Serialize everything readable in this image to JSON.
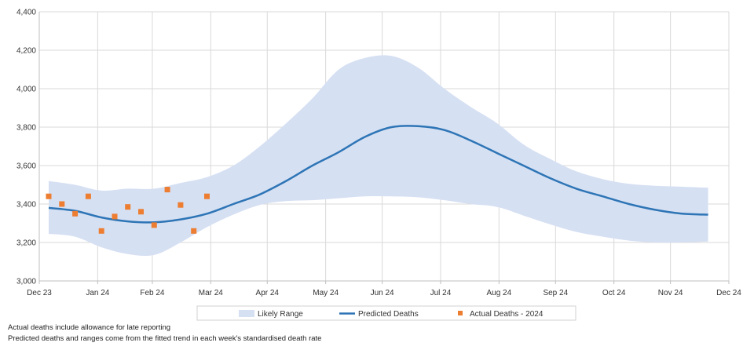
{
  "notes": [
    "Actual deaths include allowance for late reporting",
    "Predicted deaths and ranges come from the fitted trend in each week's standardised death rate"
  ],
  "colors": {
    "range": "#d6e0f3",
    "predicted": "#2e75b6",
    "actual": "#ed7d31",
    "grid": "#d9d9d9",
    "axis": "#bfbfbf"
  },
  "chart_data": {
    "type": "line",
    "title": "",
    "xlabel": "",
    "ylabel": "",
    "ylim": [
      3000,
      4400
    ],
    "yticks": [
      3000,
      3200,
      3400,
      3600,
      3800,
      4000,
      4200,
      4400
    ],
    "ytick_labels": [
      "3,000",
      "3,200",
      "3,400",
      "3,600",
      "3,800",
      "4,000",
      "4,200",
      "4,400"
    ],
    "xlim": [
      "2023-12-31",
      "2024-12-31"
    ],
    "xticks": [
      {
        "date": "2023-12-31",
        "label": "Dec 23"
      },
      {
        "date": "2024-01-31",
        "label": "Jan 24"
      },
      {
        "date": "2024-02-29",
        "label": "Feb 24"
      },
      {
        "date": "2024-03-31",
        "label": "Mar 24"
      },
      {
        "date": "2024-04-30",
        "label": "Apr 24"
      },
      {
        "date": "2024-05-31",
        "label": "May 24"
      },
      {
        "date": "2024-06-30",
        "label": "Jun 24"
      },
      {
        "date": "2024-07-31",
        "label": "Jul 24"
      },
      {
        "date": "2024-08-31",
        "label": "Aug 24"
      },
      {
        "date": "2024-09-30",
        "label": "Sep 24"
      },
      {
        "date": "2024-10-31",
        "label": "Oct 24"
      },
      {
        "date": "2024-11-30",
        "label": "Nov 24"
      },
      {
        "date": "2024-12-31",
        "label": "Dec 24"
      }
    ],
    "grid": true,
    "legend": {
      "position": "bottom",
      "entries": [
        {
          "key": "range",
          "label": "Likely Range"
        },
        {
          "key": "predicted",
          "label": "Predicted Deaths"
        },
        {
          "key": "actual",
          "label": "Actual Deaths - 2024"
        }
      ]
    },
    "series": [
      {
        "name": "Likely Range",
        "kind": "band",
        "points": [
          {
            "x": "2024-01-05",
            "low": 3245,
            "high": 3520
          },
          {
            "x": "2024-01-19",
            "low": 3230,
            "high": 3500
          },
          {
            "x": "2024-02-02",
            "low": 3175,
            "high": 3470
          },
          {
            "x": "2024-02-16",
            "low": 3140,
            "high": 3480
          },
          {
            "x": "2024-03-01",
            "low": 3135,
            "high": 3480
          },
          {
            "x": "2024-03-15",
            "low": 3200,
            "high": 3510
          },
          {
            "x": "2024-03-29",
            "low": 3280,
            "high": 3540
          },
          {
            "x": "2024-04-12",
            "low": 3345,
            "high": 3600
          },
          {
            "x": "2024-04-26",
            "low": 3395,
            "high": 3700
          },
          {
            "x": "2024-05-10",
            "low": 3415,
            "high": 3820
          },
          {
            "x": "2024-05-24",
            "low": 3420,
            "high": 3950
          },
          {
            "x": "2024-06-07",
            "low": 3430,
            "high": 4100
          },
          {
            "x": "2024-06-21",
            "low": 3440,
            "high": 4160
          },
          {
            "x": "2024-07-05",
            "low": 3440,
            "high": 4170
          },
          {
            "x": "2024-07-19",
            "low": 3435,
            "high": 4110
          },
          {
            "x": "2024-08-02",
            "low": 3420,
            "high": 4000
          },
          {
            "x": "2024-08-16",
            "low": 3400,
            "high": 3905
          },
          {
            "x": "2024-08-30",
            "low": 3385,
            "high": 3820
          },
          {
            "x": "2024-09-13",
            "low": 3340,
            "high": 3710
          },
          {
            "x": "2024-09-27",
            "low": 3295,
            "high": 3635
          },
          {
            "x": "2024-10-11",
            "low": 3255,
            "high": 3570
          },
          {
            "x": "2024-10-25",
            "low": 3230,
            "high": 3530
          },
          {
            "x": "2024-11-08",
            "low": 3210,
            "high": 3505
          },
          {
            "x": "2024-11-22",
            "low": 3200,
            "high": 3495
          },
          {
            "x": "2024-12-06",
            "low": 3200,
            "high": 3490
          },
          {
            "x": "2024-12-20",
            "low": 3205,
            "high": 3485
          }
        ]
      },
      {
        "name": "Predicted Deaths",
        "kind": "line",
        "points": [
          {
            "x": "2024-01-05",
            "y": 3380
          },
          {
            "x": "2024-01-19",
            "y": 3365
          },
          {
            "x": "2024-02-02",
            "y": 3330
          },
          {
            "x": "2024-02-16",
            "y": 3310
          },
          {
            "x": "2024-03-01",
            "y": 3305
          },
          {
            "x": "2024-03-15",
            "y": 3320
          },
          {
            "x": "2024-03-29",
            "y": 3350
          },
          {
            "x": "2024-04-12",
            "y": 3400
          },
          {
            "x": "2024-04-26",
            "y": 3450
          },
          {
            "x": "2024-05-10",
            "y": 3520
          },
          {
            "x": "2024-05-24",
            "y": 3600
          },
          {
            "x": "2024-06-07",
            "y": 3670
          },
          {
            "x": "2024-06-21",
            "y": 3750
          },
          {
            "x": "2024-07-05",
            "y": 3800
          },
          {
            "x": "2024-07-19",
            "y": 3805
          },
          {
            "x": "2024-08-02",
            "y": 3785
          },
          {
            "x": "2024-08-16",
            "y": 3730
          },
          {
            "x": "2024-08-30",
            "y": 3665
          },
          {
            "x": "2024-09-13",
            "y": 3600
          },
          {
            "x": "2024-09-27",
            "y": 3535
          },
          {
            "x": "2024-10-11",
            "y": 3480
          },
          {
            "x": "2024-10-25",
            "y": 3440
          },
          {
            "x": "2024-11-08",
            "y": 3400
          },
          {
            "x": "2024-11-22",
            "y": 3370
          },
          {
            "x": "2024-12-06",
            "y": 3350
          },
          {
            "x": "2024-12-20",
            "y": 3345
          }
        ]
      },
      {
        "name": "Actual Deaths - 2024",
        "kind": "scatter",
        "points": [
          {
            "x": "2024-01-05",
            "y": 3440
          },
          {
            "x": "2024-01-12",
            "y": 3400
          },
          {
            "x": "2024-01-19",
            "y": 3350
          },
          {
            "x": "2024-01-26",
            "y": 3440
          },
          {
            "x": "2024-02-02",
            "y": 3260
          },
          {
            "x": "2024-02-09",
            "y": 3335
          },
          {
            "x": "2024-02-16",
            "y": 3385
          },
          {
            "x": "2024-02-23",
            "y": 3360
          },
          {
            "x": "2024-03-01",
            "y": 3290
          },
          {
            "x": "2024-03-08",
            "y": 3475
          },
          {
            "x": "2024-03-15",
            "y": 3395
          },
          {
            "x": "2024-03-22",
            "y": 3260
          },
          {
            "x": "2024-03-29",
            "y": 3440
          }
        ]
      }
    ]
  }
}
